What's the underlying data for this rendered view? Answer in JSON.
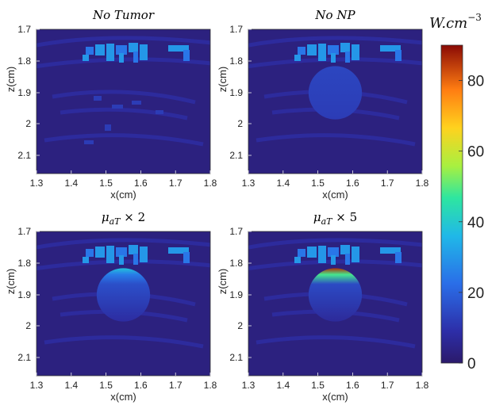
{
  "chart_data": {
    "type": "heatmap",
    "colormap": "jet (dark navy at 0 → blue → cyan → green → yellow → orange → dark red at max)",
    "colorbar": {
      "unit": "W.cm",
      "unit_exponent": "−3",
      "range": [
        0,
        90
      ],
      "ticks": [
        "0",
        "20",
        "40",
        "60",
        "80"
      ]
    },
    "panels": [
      {
        "title": "No Tumor",
        "xlabel": "x(cm)",
        "ylabel": "z(cm)",
        "xlim": [
          1.3,
          1.8
        ],
        "ylim": [
          1.7,
          2.15
        ],
        "xticks": [
          "1.3",
          "1.4",
          "1.5",
          "1.6",
          "1.7",
          "1.8"
        ],
        "yticks": [
          "1.7",
          "1.8",
          "1.9",
          "2",
          "2.1"
        ],
        "tumor": false,
        "tumor_value": 0,
        "rim_value": 0
      },
      {
        "title": "No NP",
        "xlabel": "x(cm)",
        "ylabel": "z(cm)",
        "xlim": [
          1.3,
          1.8
        ],
        "ylim": [
          1.7,
          2.15
        ],
        "xticks": [
          "1.3",
          "1.4",
          "1.5",
          "1.6",
          "1.7",
          "1.8"
        ],
        "yticks": [
          "1.7",
          "1.8",
          "1.9",
          "2",
          "2.1"
        ],
        "tumor": true,
        "tumor_value": 14,
        "rim_value": 14
      },
      {
        "title": "μaT × 2",
        "title_main": "μ",
        "title_sub": "aT",
        "title_rest": " × 2",
        "xlabel": "x(cm)",
        "ylabel": "z(cm)",
        "xlim": [
          1.3,
          1.8
        ],
        "ylim": [
          1.7,
          2.15
        ],
        "xticks": [
          "1.3",
          "1.4",
          "1.5",
          "1.6",
          "1.7",
          "1.8"
        ],
        "yticks": [
          "1.7",
          "1.8",
          "1.9",
          "2",
          "2.1"
        ],
        "tumor": true,
        "tumor_value": 12,
        "rim_value": 38
      },
      {
        "title": "μaT × 5",
        "title_main": "μ",
        "title_sub": "aT",
        "title_rest": " × 5",
        "xlabel": "x(cm)",
        "ylabel": "z(cm)",
        "xlim": [
          1.3,
          1.8
        ],
        "ylim": [
          1.7,
          2.15
        ],
        "xticks": [
          "1.3",
          "1.4",
          "1.5",
          "1.6",
          "1.7",
          "1.8"
        ],
        "yticks": [
          "1.7",
          "1.8",
          "1.9",
          "2",
          "2.1"
        ],
        "tumor": true,
        "tumor_value": 11,
        "rim_value": 86
      }
    ],
    "tumor_center": {
      "x": 1.55,
      "z": 1.9
    },
    "tumor_radius_cm": 0.08,
    "skin_band_value": 30,
    "background_value": 3
  }
}
